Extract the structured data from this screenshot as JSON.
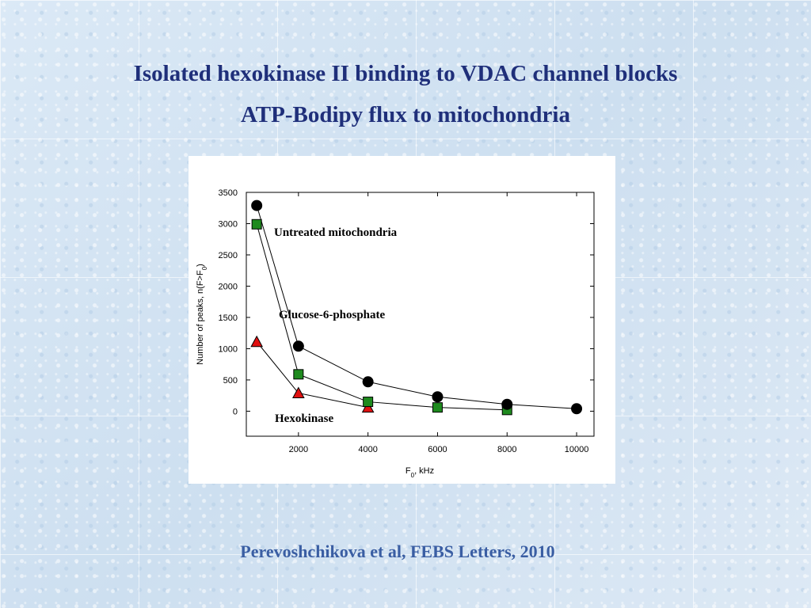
{
  "slide": {
    "title_line1": "Isolated hexokinase II binding  to VDAC channel blocks",
    "title_line2": "ATP-Bodipy flux to mitochondria",
    "citation": "Perevoshchikova et al, FEBS Letters, 2010"
  },
  "chart_data": {
    "type": "line",
    "xlabel": "F0, kHz",
    "ylabel": "Number of peaks, n(F>F0)",
    "xlim": [
      500,
      10500
    ],
    "ylim": [
      -400,
      3500
    ],
    "x_ticks": [
      2000,
      4000,
      6000,
      8000,
      10000
    ],
    "y_ticks": [
      0,
      500,
      1000,
      1500,
      2000,
      2500,
      3000,
      3500
    ],
    "grid": false,
    "series": [
      {
        "name": "Untreated mitochondria",
        "marker": "circle",
        "color": "#000000",
        "x": [
          800,
          2000,
          4000,
          6000,
          8000,
          10000
        ],
        "y": [
          3290,
          1040,
          470,
          230,
          110,
          40
        ]
      },
      {
        "name": "Glucose-6-phosphate",
        "marker": "square",
        "color": "#1e8a1e",
        "x": [
          800,
          2000,
          4000,
          6000,
          8000
        ],
        "y": [
          2990,
          590,
          150,
          60,
          20
        ]
      },
      {
        "name": "Hexokinase",
        "marker": "triangle",
        "color": "#e01010",
        "x": [
          800,
          2000,
          4000
        ],
        "y": [
          1110,
          290,
          60
        ]
      }
    ]
  }
}
